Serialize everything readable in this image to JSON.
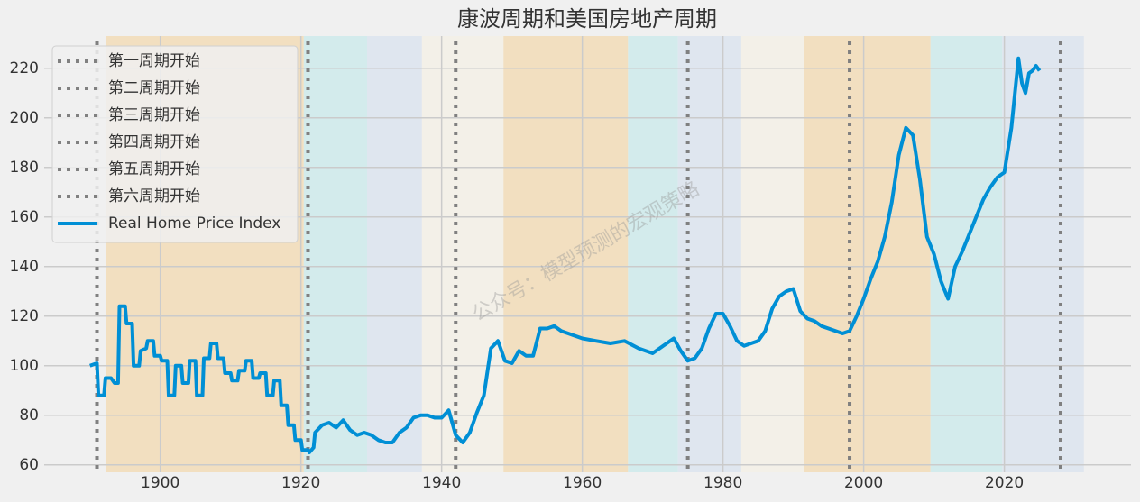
{
  "chart_data": {
    "type": "line",
    "title": "康波周期和美国房地产周期",
    "watermark": "公众号：模型预测的宏观策略",
    "xlim": [
      1883.5,
      2038
    ],
    "ylim": [
      57,
      233
    ],
    "xticks": [
      1900,
      1920,
      1940,
      1960,
      1980,
      2000,
      2020
    ],
    "yticks": [
      60,
      80,
      100,
      120,
      140,
      160,
      180,
      200,
      220
    ],
    "grid": true,
    "legend": "upper left",
    "spans": [
      {
        "start": 1892.3,
        "end": 1920.4,
        "color": "#f2dfc0"
      },
      {
        "start": 1920.4,
        "end": 1929.4,
        "color": "#d3ebec"
      },
      {
        "start": 1929.4,
        "end": 1937.2,
        "color": "#dfe6ef"
      },
      {
        "start": 1937.2,
        "end": 1948.8,
        "color": "#f3f0e8"
      },
      {
        "start": 1948.8,
        "end": 1966.5,
        "color": "#f2dfc0"
      },
      {
        "start": 1966.5,
        "end": 1973.6,
        "color": "#d3ebec"
      },
      {
        "start": 1973.6,
        "end": 1982.6,
        "color": "#dfe6ef"
      },
      {
        "start": 1982.6,
        "end": 1991.5,
        "color": "#f3f0e8"
      },
      {
        "start": 1991.5,
        "end": 2009.5,
        "color": "#f2dfc0"
      },
      {
        "start": 2009.5,
        "end": 2019.7,
        "color": "#d3ebec"
      },
      {
        "start": 2019.7,
        "end": 2031.3,
        "color": "#dfe6ef"
      }
    ],
    "vline_color": "#808080",
    "vlines": [
      {
        "name": "第一周期开始",
        "x": 1891
      },
      {
        "name": "第二周期开始",
        "x": 1921
      },
      {
        "name": "第三周期开始",
        "x": 1942
      },
      {
        "name": "第四周期开始",
        "x": 1975
      },
      {
        "name": "第五周期开始",
        "x": 1998
      },
      {
        "name": "第六周期开始",
        "x": 2028
      }
    ],
    "series": [
      {
        "name": "Real Home Price Index",
        "color": "#008fd5",
        "x": [
          1890,
          1891,
          1891.2,
          1892,
          1892.2,
          1893,
          1893.5,
          1894,
          1894.2,
          1895,
          1895.2,
          1896,
          1896.2,
          1897,
          1897.2,
          1898,
          1898.2,
          1899,
          1899.2,
          1900,
          1900.2,
          1901,
          1901.2,
          1902,
          1902.2,
          1903,
          1903.2,
          1904,
          1904.2,
          1905,
          1905.2,
          1906,
          1906.2,
          1907,
          1907.2,
          1908,
          1908.2,
          1909,
          1909.2,
          1910,
          1910.2,
          1911,
          1911.2,
          1912,
          1912.2,
          1913,
          1913.2,
          1914,
          1914.2,
          1915,
          1915.2,
          1916,
          1916.2,
          1917,
          1917.2,
          1918,
          1918.2,
          1919,
          1919.2,
          1920,
          1920.2,
          1921,
          1921.2,
          1921.8,
          1922,
          1923,
          1924,
          1925,
          1926,
          1927,
          1928,
          1929,
          1930,
          1931,
          1932,
          1933,
          1934,
          1935,
          1936,
          1937,
          1938,
          1939,
          1940,
          1941,
          1942,
          1943,
          1944,
          1945,
          1946,
          1947,
          1948,
          1949,
          1950,
          1951,
          1952,
          1953,
          1954,
          1955,
          1956,
          1957,
          1958,
          1960,
          1962,
          1964,
          1966,
          1968,
          1970,
          1971,
          1972,
          1973,
          1974,
          1975,
          1976,
          1977,
          1978,
          1979,
          1980,
          1981,
          1982,
          1983,
          1984,
          1985,
          1986,
          1987,
          1988,
          1989,
          1990,
          1991,
          1992,
          1993,
          1994,
          1995,
          1996,
          1997,
          1998,
          1999,
          2000,
          2001,
          2002,
          2003,
          2004,
          2005,
          2006,
          2007,
          2008,
          2009,
          2010,
          2011,
          2012,
          2013,
          2014,
          2015,
          2016,
          2017,
          2018,
          2019,
          2020,
          2021,
          2022,
          2022.5,
          2023,
          2023.5,
          2024,
          2024.5,
          2025
        ],
        "values": [
          100,
          101,
          88,
          88,
          95,
          95,
          93,
          93,
          124,
          124,
          117,
          117,
          100,
          100,
          106,
          107,
          110,
          110,
          104,
          104,
          102,
          102,
          88,
          88,
          100,
          100,
          93,
          93,
          102,
          102,
          88,
          88,
          103,
          103,
          109,
          109,
          103,
          103,
          97,
          97,
          94,
          94,
          98,
          98,
          102,
          102,
          95,
          95,
          97,
          97,
          88,
          88,
          94,
          94,
          84,
          84,
          76,
          76,
          70,
          70,
          66,
          66,
          65,
          67,
          73,
          76,
          77,
          75,
          78,
          74,
          72,
          73,
          72,
          70,
          69,
          69,
          73,
          75,
          79,
          80,
          80,
          79,
          79,
          82,
          72,
          69,
          73,
          81,
          88,
          107,
          110,
          102,
          101,
          106,
          104,
          104,
          115,
          115,
          116,
          114,
          113,
          111,
          110,
          109,
          110,
          107,
          105,
          107,
          109,
          111,
          106,
          102,
          103,
          107,
          115,
          121,
          121,
          116,
          110,
          108,
          109,
          110,
          114,
          123,
          128,
          130,
          131,
          122,
          119,
          118,
          116,
          115,
          114,
          113,
          114,
          120,
          127,
          135,
          142,
          152,
          166,
          185,
          196,
          193,
          175,
          152,
          145,
          134,
          127,
          140,
          146,
          153,
          160,
          167,
          172,
          176,
          178,
          196,
          224,
          214,
          210,
          218,
          219,
          221,
          219
        ]
      }
    ]
  }
}
